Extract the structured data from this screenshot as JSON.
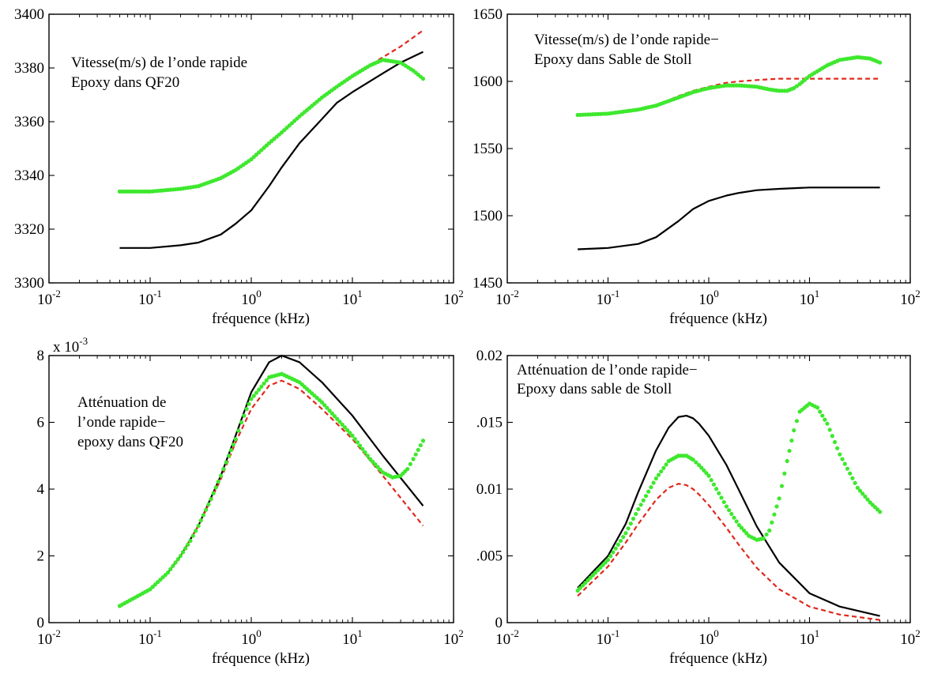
{
  "chart_data": [
    {
      "type": "line",
      "xscale": "log",
      "xlim": [
        0.01,
        100
      ],
      "ylim": [
        3300,
        3400
      ],
      "xticks": [
        0.01,
        0.1,
        1,
        10,
        100
      ],
      "xtick_labels": [
        {
          "base": "10",
          "exp": "-2"
        },
        {
          "base": "10",
          "exp": "-1"
        },
        {
          "base": "10",
          "exp": "0"
        },
        {
          "base": "10",
          "exp": "1"
        },
        {
          "base": "10",
          "exp": "2"
        }
      ],
      "yticks": [
        3300,
        3320,
        3340,
        3360,
        3380,
        3400
      ],
      "ytick_labels": [
        "3300",
        "3320",
        "3340",
        "3360",
        "3380",
        "3400"
      ],
      "ymultiplier": "",
      "xlabel": "fréquence (kHz)",
      "annotation": [
        "Vitesse(m/s) de l’onde rapide",
        "Epoxy dans QF20"
      ],
      "series": [
        {
          "style": "solid",
          "color": "#000000",
          "x": [
            0.05,
            0.1,
            0.2,
            0.3,
            0.5,
            0.7,
            1,
            1.5,
            2,
            3,
            5,
            7,
            10,
            20,
            30,
            50
          ],
          "y": [
            3313,
            3313,
            3314,
            3315,
            3318,
            3322,
            3327,
            3336,
            3343,
            3352,
            3361,
            3367,
            3371,
            3378,
            3382,
            3386
          ]
        },
        {
          "style": "dashed",
          "color": "#e0281e",
          "x": [
            0.05,
            0.1,
            0.2,
            0.3,
            0.5,
            0.7,
            1,
            1.5,
            2,
            3,
            5,
            7,
            10,
            20,
            30,
            50
          ],
          "y": [
            3334,
            3334,
            3335,
            3336,
            3339,
            3342,
            3346,
            3352,
            3356,
            3362,
            3369,
            3373,
            3377,
            3384,
            3388,
            3394
          ]
        },
        {
          "style": "dots",
          "color": "#3ee82e",
          "x": [
            0.05,
            0.1,
            0.2,
            0.3,
            0.5,
            0.7,
            1,
            1.5,
            2,
            3,
            5,
            7,
            10,
            15,
            20,
            30,
            40,
            50
          ],
          "y": [
            3334,
            3334,
            3335,
            3336,
            3339,
            3342,
            3346,
            3352,
            3356,
            3362,
            3369,
            3373,
            3377,
            3381,
            3383,
            3382,
            3379,
            3376
          ]
        }
      ]
    },
    {
      "type": "line",
      "xscale": "log",
      "xlim": [
        0.01,
        100
      ],
      "ylim": [
        1450,
        1650
      ],
      "xticks": [
        0.01,
        0.1,
        1,
        10,
        100
      ],
      "xtick_labels": [
        {
          "base": "10",
          "exp": "-2"
        },
        {
          "base": "10",
          "exp": "-1"
        },
        {
          "base": "10",
          "exp": "0"
        },
        {
          "base": "10",
          "exp": "1"
        },
        {
          "base": "10",
          "exp": "2"
        }
      ],
      "yticks": [
        1450,
        1500,
        1550,
        1600,
        1650
      ],
      "ytick_labels": [
        "1450",
        "1500",
        "1550",
        "1600",
        "1650"
      ],
      "ymultiplier": "",
      "xlabel": "fréquence (kHz)",
      "annotation": [
        "Vitesse(m/s) de l’onde rapide−",
        "Epoxy dans Sable de Stoll"
      ],
      "series": [
        {
          "style": "solid",
          "color": "#000000",
          "x": [
            0.05,
            0.1,
            0.2,
            0.3,
            0.5,
            0.7,
            1,
            1.5,
            2,
            3,
            5,
            10,
            20,
            50
          ],
          "y": [
            1475,
            1476,
            1479,
            1484,
            1496,
            1505,
            1511,
            1515,
            1517,
            1519,
            1520,
            1521,
            1521,
            1521
          ]
        },
        {
          "style": "dashed",
          "color": "#e0281e",
          "x": [
            0.05,
            0.1,
            0.2,
            0.3,
            0.5,
            0.7,
            1,
            1.5,
            2,
            3,
            5,
            10,
            20,
            50
          ],
          "y": [
            1575,
            1576,
            1579,
            1582,
            1589,
            1593,
            1596,
            1599,
            1600,
            1601,
            1602,
            1602,
            1602,
            1602
          ]
        },
        {
          "style": "dots",
          "color": "#3ee82e",
          "x": [
            0.05,
            0.1,
            0.2,
            0.3,
            0.5,
            0.7,
            1,
            1.5,
            2,
            3,
            4,
            5,
            6,
            7,
            8,
            10,
            15,
            20,
            30,
            40,
            50
          ],
          "y": [
            1575,
            1576,
            1579,
            1582,
            1588,
            1592,
            1595,
            1597,
            1597,
            1596,
            1594,
            1593,
            1593,
            1595,
            1598,
            1604,
            1612,
            1616,
            1618,
            1617,
            1614
          ]
        }
      ]
    },
    {
      "type": "line",
      "xscale": "log",
      "xlim": [
        0.01,
        100
      ],
      "ylim": [
        0,
        8
      ],
      "xticks": [
        0.01,
        0.1,
        1,
        10,
        100
      ],
      "xtick_labels": [
        {
          "base": "10",
          "exp": "-2"
        },
        {
          "base": "10",
          "exp": "-1"
        },
        {
          "base": "10",
          "exp": "0"
        },
        {
          "base": "10",
          "exp": "1"
        },
        {
          "base": "10",
          "exp": "2"
        }
      ],
      "yticks": [
        0,
        2,
        4,
        6,
        8
      ],
      "ytick_labels": [
        "0",
        "2",
        "4",
        "6",
        "8"
      ],
      "ymultiplier": "x 10",
      "ymultiplier_exp": "-3",
      "xlabel": "fréquence (kHz)",
      "annotation": [
        "Atténuation de",
        "l’onde rapide−",
        "epoxy dans QF20"
      ],
      "series": [
        {
          "style": "solid",
          "color": "#000000",
          "x": [
            0.05,
            0.1,
            0.15,
            0.2,
            0.3,
            0.5,
            0.7,
            1,
            1.5,
            2,
            3,
            5,
            10,
            20,
            50
          ],
          "y": [
            0.5,
            1.0,
            1.5,
            2.0,
            2.9,
            4.4,
            5.6,
            6.9,
            7.8,
            8.0,
            7.8,
            7.2,
            6.2,
            5.0,
            3.5
          ]
        },
        {
          "style": "dashed",
          "color": "#e0281e",
          "x": [
            0.05,
            0.1,
            0.15,
            0.2,
            0.3,
            0.5,
            0.7,
            1,
            1.5,
            2,
            3,
            5,
            10,
            20,
            50
          ],
          "y": [
            0.5,
            1.0,
            1.5,
            2.0,
            2.9,
            4.3,
            5.4,
            6.4,
            7.1,
            7.25,
            7.0,
            6.4,
            5.5,
            4.4,
            2.9
          ]
        },
        {
          "style": "dots",
          "color": "#3ee82e",
          "x": [
            0.05,
            0.1,
            0.15,
            0.2,
            0.25,
            0.3,
            0.4,
            0.5,
            0.6,
            0.7,
            0.8,
            0.9,
            1,
            1.5,
            2,
            3,
            5,
            10,
            15,
            20,
            25,
            30,
            35,
            40,
            50
          ],
          "y": [
            0.5,
            1.0,
            1.5,
            2.0,
            2.45,
            2.9,
            3.7,
            4.4,
            5.0,
            5.5,
            6.0,
            6.4,
            6.7,
            7.35,
            7.45,
            7.2,
            6.6,
            5.6,
            4.9,
            4.5,
            4.35,
            4.4,
            4.6,
            4.9,
            5.45
          ]
        }
      ]
    },
    {
      "type": "line",
      "xscale": "log",
      "xlim": [
        0.01,
        100
      ],
      "ylim": [
        0,
        0.02
      ],
      "xticks": [
        0.01,
        0.1,
        1,
        10,
        100
      ],
      "xtick_labels": [
        {
          "base": "10",
          "exp": "-2"
        },
        {
          "base": "10",
          "exp": "-1"
        },
        {
          "base": "10",
          "exp": "0"
        },
        {
          "base": "10",
          "exp": "1"
        },
        {
          "base": "10",
          "exp": "2"
        }
      ],
      "yticks": [
        0,
        0.005,
        0.01,
        0.015,
        0.02
      ],
      "ytick_labels": [
        "0",
        ".005",
        "0.01",
        ".015",
        "0.02"
      ],
      "ymultiplier": "",
      "xlabel": "fréquence (kHz)",
      "annotation": [
        "Atténuation de l’onde rapide−",
        "Epoxy dans sable de Stoll"
      ],
      "series": [
        {
          "style": "solid",
          "color": "#000000",
          "x": [
            0.05,
            0.1,
            0.15,
            0.2,
            0.3,
            0.4,
            0.5,
            0.6,
            0.7,
            0.8,
            1,
            1.5,
            2,
            3,
            5,
            10,
            20,
            50
          ],
          "y": [
            0.0026,
            0.005,
            0.0074,
            0.0098,
            0.0129,
            0.0146,
            0.0154,
            0.0155,
            0.0153,
            0.0149,
            0.014,
            0.0118,
            0.0099,
            0.0072,
            0.0045,
            0.0022,
            0.0012,
            0.0005
          ]
        },
        {
          "style": "dashed",
          "color": "#e0281e",
          "x": [
            0.05,
            0.1,
            0.15,
            0.2,
            0.3,
            0.4,
            0.5,
            0.6,
            0.7,
            0.8,
            1,
            1.5,
            2,
            3,
            5,
            10,
            20,
            50
          ],
          "y": [
            0.002,
            0.0042,
            0.006,
            0.0074,
            0.0092,
            0.0101,
            0.0104,
            0.0103,
            0.01,
            0.0096,
            0.0088,
            0.0071,
            0.0058,
            0.0041,
            0.0025,
            0.0012,
            0.0006,
            0.0002
          ]
        },
        {
          "style": "dots",
          "color": "#3ee82e",
          "x": [
            0.05,
            0.1,
            0.15,
            0.2,
            0.3,
            0.4,
            0.5,
            0.6,
            0.7,
            0.8,
            1,
            1.5,
            2,
            2.5,
            3,
            3.5,
            4,
            5,
            6,
            7,
            8,
            10,
            12,
            15,
            20,
            30,
            40,
            50
          ],
          "y": [
            0.0024,
            0.0047,
            0.0067,
            0.0085,
            0.0108,
            0.0121,
            0.0125,
            0.0125,
            0.0122,
            0.0118,
            0.011,
            0.0087,
            0.0073,
            0.0065,
            0.0062,
            0.0063,
            0.0069,
            0.0093,
            0.0121,
            0.0144,
            0.0158,
            0.0164,
            0.0161,
            0.0149,
            0.0126,
            0.0101,
            0.009,
            0.0083
          ]
        }
      ]
    }
  ]
}
